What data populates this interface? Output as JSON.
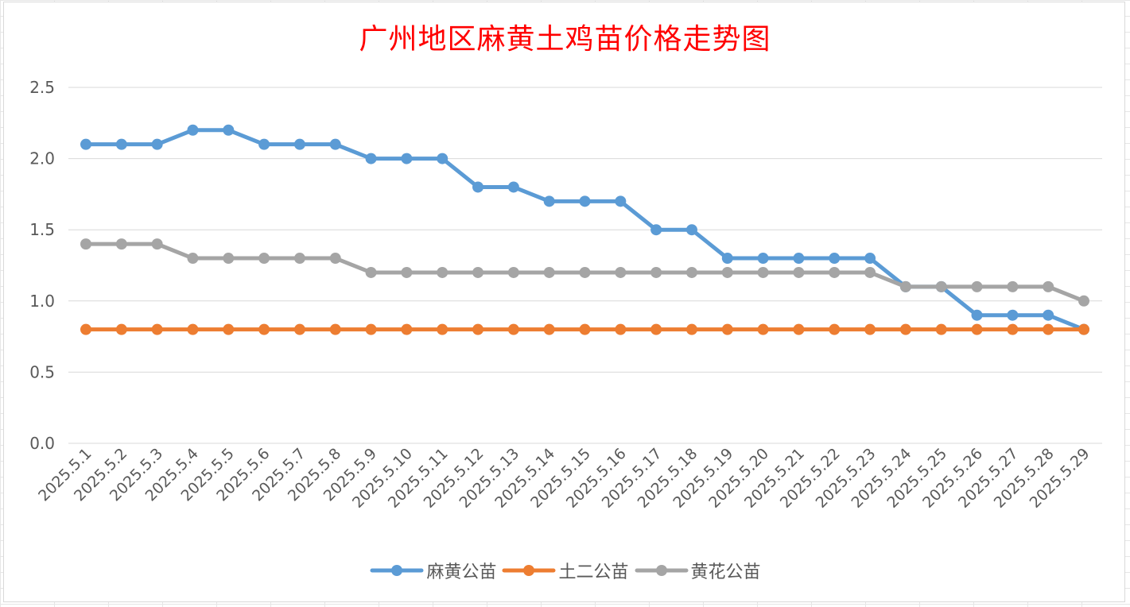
{
  "chart_data": {
    "type": "line",
    "title": "广州地区麻黄土鸡苗价格走势图",
    "xlabel": "",
    "ylabel": "",
    "ylim": [
      0,
      2.5
    ],
    "yticks": [
      "0.0",
      "0.5",
      "1.0",
      "1.5",
      "2.0",
      "2.5"
    ],
    "grid": true,
    "legend_position": "bottom",
    "categories": [
      "2025.5.1",
      "2025.5.2",
      "2025.5.3",
      "2025.5.4",
      "2025.5.5",
      "2025.5.6",
      "2025.5.7",
      "2025.5.8",
      "2025.5.9",
      "2025.5.10",
      "2025.5.11",
      "2025.5.12",
      "2025.5.13",
      "2025.5.14",
      "2025.5.15",
      "2025.5.16",
      "2025.5.17",
      "2025.5.18",
      "2025.5.19",
      "2025.5.20",
      "2025.5.21",
      "2025.5.22",
      "2025.5.23",
      "2025.5.24",
      "2025.5.25",
      "2025.5.26",
      "2025.5.27",
      "2025.5.28",
      "2025.5.29"
    ],
    "series": [
      {
        "name": "麻黄公苗",
        "color": "#5b9bd5",
        "values": [
          2.1,
          2.1,
          2.1,
          2.2,
          2.2,
          2.1,
          2.1,
          2.1,
          2.0,
          2.0,
          2.0,
          1.8,
          1.8,
          1.7,
          1.7,
          1.7,
          1.5,
          1.5,
          1.3,
          1.3,
          1.3,
          1.3,
          1.3,
          1.1,
          1.1,
          0.9,
          0.9,
          0.9,
          0.8
        ]
      },
      {
        "name": "土二公苗",
        "color": "#ed7d31",
        "values": [
          0.8,
          0.8,
          0.8,
          0.8,
          0.8,
          0.8,
          0.8,
          0.8,
          0.8,
          0.8,
          0.8,
          0.8,
          0.8,
          0.8,
          0.8,
          0.8,
          0.8,
          0.8,
          0.8,
          0.8,
          0.8,
          0.8,
          0.8,
          0.8,
          0.8,
          0.8,
          0.8,
          0.8,
          0.8
        ]
      },
      {
        "name": "黄花公苗",
        "color": "#a5a5a5",
        "values": [
          1.4,
          1.4,
          1.4,
          1.3,
          1.3,
          1.3,
          1.3,
          1.3,
          1.2,
          1.2,
          1.2,
          1.2,
          1.2,
          1.2,
          1.2,
          1.2,
          1.2,
          1.2,
          1.2,
          1.2,
          1.2,
          1.2,
          1.2,
          1.1,
          1.1,
          1.1,
          1.1,
          1.1,
          1.0
        ]
      }
    ]
  }
}
